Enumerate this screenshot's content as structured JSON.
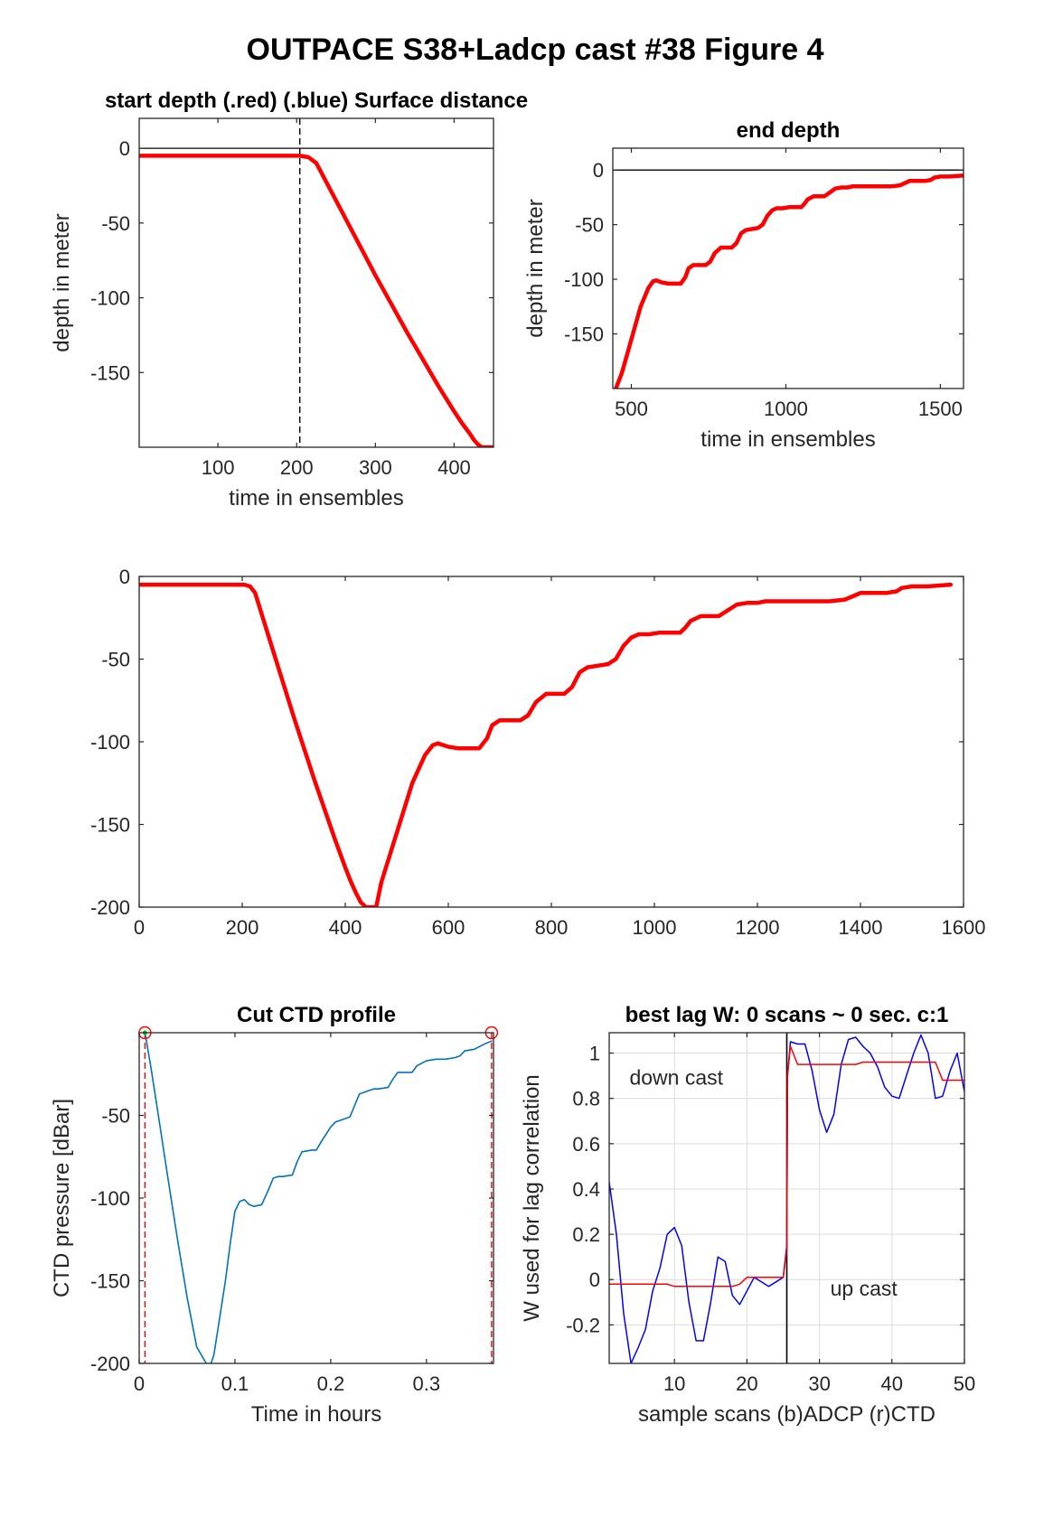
{
  "figure_title": "OUTPACE S38+Ladcp cast #38   Figure 4",
  "chart_data": [
    {
      "id": "start",
      "type": "line",
      "title": "start depth (.red) (.blue) Surface distance",
      "xlabel": "time in ensembles",
      "ylabel": "depth in meter",
      "xlim": [
        0,
        450
      ],
      "ylim": [
        -200,
        20
      ],
      "xticks": [
        100,
        200,
        300,
        400
      ],
      "yticks": [
        0,
        -50,
        -100,
        -150
      ],
      "hlines": [
        0
      ],
      "vlines_dashed": [
        204
      ],
      "series": [
        {
          "color": "#ff0000",
          "x": [
            0,
            50,
            100,
            150,
            200,
            204,
            215,
            225,
            240,
            260,
            280,
            300,
            320,
            340,
            360,
            380,
            400,
            410,
            420,
            425,
            430,
            435,
            440,
            445,
            450
          ],
          "y": [
            -5,
            -5,
            -5,
            -5,
            -5,
            -5,
            -6,
            -10,
            -25,
            -45,
            -65,
            -85,
            -104,
            -123,
            -141,
            -159,
            -176,
            -184,
            -191,
            -195,
            -198,
            -200,
            -200,
            -200,
            -200
          ]
        }
      ]
    },
    {
      "id": "end",
      "type": "line",
      "title": "end depth",
      "xlabel": "time in ensembles",
      "ylabel": "depth in meter",
      "xlim": [
        440,
        1575
      ],
      "ylim": [
        -200,
        20
      ],
      "xticks": [
        500,
        1000,
        1500
      ],
      "yticks": [
        0,
        -50,
        -100,
        -150
      ],
      "hlines": [
        0
      ],
      "series": [
        {
          "color": "#ff0000",
          "x": [
            450,
            470,
            500,
            530,
            555,
            570,
            580,
            600,
            620,
            640,
            660,
            675,
            685,
            700,
            720,
            740,
            755,
            770,
            790,
            810,
            825,
            840,
            855,
            870,
            890,
            910,
            925,
            940,
            955,
            970,
            990,
            1010,
            1030,
            1050,
            1060,
            1070,
            1090,
            1110,
            1125,
            1140,
            1160,
            1180,
            1200,
            1215,
            1230,
            1260,
            1300,
            1340,
            1370,
            1385,
            1400,
            1430,
            1450,
            1470,
            1480,
            1500,
            1530,
            1575
          ],
          "y": [
            -200,
            -185,
            -155,
            -125,
            -108,
            -102,
            -101,
            -103,
            -104,
            -104,
            -104,
            -98,
            -90,
            -87,
            -87,
            -87,
            -84,
            -76,
            -71,
            -71,
            -71,
            -67,
            -58,
            -55,
            -54,
            -53,
            -50,
            -42,
            -37,
            -35,
            -35,
            -34,
            -34,
            -34,
            -31,
            -27,
            -24,
            -24,
            -24,
            -21,
            -17,
            -16,
            -16,
            -15,
            -15,
            -15,
            -15,
            -15,
            -14,
            -12,
            -10,
            -10,
            -10,
            -9,
            -7,
            -6,
            -6,
            -5
          ]
        }
      ]
    },
    {
      "id": "full",
      "type": "line",
      "title": "",
      "xlabel": "",
      "ylabel": "",
      "xlim": [
        0,
        1600
      ],
      "ylim": [
        -200,
        0
      ],
      "xticks": [
        0,
        200,
        400,
        600,
        800,
        1000,
        1200,
        1400,
        1600
      ],
      "yticks": [
        0,
        -50,
        -100,
        -150,
        -200
      ],
      "series": [
        {
          "color": "#ff0000",
          "x": [
            0,
            50,
            100,
            150,
            200,
            204,
            215,
            225,
            240,
            260,
            280,
            300,
            320,
            340,
            360,
            380,
            400,
            410,
            420,
            430,
            440,
            450,
            460,
            470,
            500,
            530,
            555,
            570,
            580,
            600,
            620,
            640,
            660,
            675,
            685,
            700,
            720,
            740,
            755,
            770,
            790,
            810,
            825,
            840,
            855,
            870,
            890,
            910,
            925,
            940,
            955,
            970,
            990,
            1010,
            1030,
            1050,
            1060,
            1070,
            1090,
            1110,
            1125,
            1140,
            1160,
            1180,
            1200,
            1215,
            1230,
            1260,
            1300,
            1340,
            1370,
            1385,
            1400,
            1430,
            1450,
            1470,
            1480,
            1500,
            1530,
            1575
          ],
          "y": [
            -5,
            -5,
            -5,
            -5,
            -5,
            -5,
            -6,
            -10,
            -25,
            -45,
            -65,
            -85,
            -104,
            -123,
            -141,
            -159,
            -176,
            -184,
            -191,
            -197,
            -200,
            -200,
            -200,
            -185,
            -155,
            -125,
            -108,
            -102,
            -101,
            -103,
            -104,
            -104,
            -104,
            -98,
            -90,
            -87,
            -87,
            -87,
            -84,
            -76,
            -71,
            -71,
            -71,
            -67,
            -58,
            -55,
            -54,
            -53,
            -50,
            -42,
            -37,
            -35,
            -35,
            -34,
            -34,
            -34,
            -31,
            -27,
            -24,
            -24,
            -24,
            -21,
            -17,
            -16,
            -16,
            -15,
            -15,
            -15,
            -15,
            -15,
            -14,
            -12,
            -10,
            -10,
            -10,
            -9,
            -7,
            -6,
            -6,
            -5
          ]
        }
      ]
    },
    {
      "id": "cut",
      "type": "line",
      "title": "Cut CTD profile",
      "xlabel": "Time in hours",
      "ylabel": "CTD pressure [dBar]",
      "xlim": [
        0,
        0.37
      ],
      "ylim": [
        -200,
        0
      ],
      "xticks": [
        0,
        0.1,
        0.2,
        0.3
      ],
      "yticks": [
        -50,
        -100,
        -150,
        -200
      ],
      "markers": [
        [
          0.006,
          0
        ],
        [
          0.368,
          0
        ]
      ],
      "vlines_dashed": [
        0.006,
        0.368
      ],
      "series": [
        {
          "color": "#0072bd",
          "x": [
            0.006,
            0.012,
            0.02,
            0.03,
            0.04,
            0.05,
            0.06,
            0.07,
            0.075,
            0.078,
            0.082,
            0.09,
            0.095,
            0.1,
            0.105,
            0.11,
            0.115,
            0.12,
            0.128,
            0.135,
            0.14,
            0.145,
            0.15,
            0.16,
            0.165,
            0.17,
            0.18,
            0.185,
            0.19,
            0.2,
            0.205,
            0.21,
            0.22,
            0.225,
            0.23,
            0.24,
            0.245,
            0.25,
            0.26,
            0.265,
            0.27,
            0.28,
            0.285,
            0.29,
            0.3,
            0.31,
            0.32,
            0.33,
            0.335,
            0.34,
            0.35,
            0.36,
            0.368
          ],
          "y": [
            0,
            -20,
            -50,
            -88,
            -125,
            -160,
            -190,
            -200,
            -200,
            -195,
            -180,
            -150,
            -128,
            -108,
            -102,
            -101,
            -104,
            -105,
            -104,
            -95,
            -88,
            -87,
            -87,
            -86,
            -78,
            -72,
            -71,
            -71,
            -66,
            -57,
            -54,
            -53,
            -51,
            -44,
            -37,
            -35,
            -34,
            -34,
            -33,
            -28,
            -24,
            -24,
            -24,
            -20,
            -17,
            -16,
            -16,
            -15,
            -14,
            -11,
            -10,
            -7,
            -5
          ]
        }
      ]
    },
    {
      "id": "lag",
      "type": "line",
      "title": "best lag W: 0 scans ~ 0 sec.  c:1",
      "xlabel": "sample scans (b)ADCP (r)CTD",
      "ylabel": "W used for lag correlation",
      "xlim": [
        1,
        50
      ],
      "ylim": [
        -0.37,
        1.09
      ],
      "xticks": [
        10,
        20,
        30,
        40,
        50
      ],
      "yticks": [
        1,
        0.8,
        0.6,
        0.4,
        0.2,
        0,
        -0.2
      ],
      "grid": true,
      "vlines_solid": [
        25.5
      ],
      "annotations": [
        {
          "text": "down cast",
          "x": 3.8,
          "y": 0.86
        },
        {
          "text": "up cast",
          "x": 31.5,
          "y": -0.07
        }
      ],
      "series": [
        {
          "name": "(b)ADCP",
          "color": "#0000ff",
          "x": [
            1,
            2,
            3,
            4,
            5,
            6,
            7,
            8,
            9,
            10,
            11,
            12,
            13,
            14,
            15,
            16,
            17,
            18,
            19,
            20,
            21,
            22,
            23,
            24,
            25,
            25.5,
            25.6,
            26,
            27,
            28,
            29,
            30,
            31,
            32,
            33,
            34,
            35,
            36,
            37,
            38,
            39,
            40,
            41,
            42,
            43,
            44,
            45,
            46,
            47,
            48,
            49,
            50
          ],
          "y": [
            0.43,
            0.2,
            -0.15,
            -0.37,
            -0.3,
            -0.22,
            -0.05,
            0.05,
            0.2,
            0.23,
            0.15,
            -0.1,
            -0.27,
            -0.27,
            -0.1,
            0.1,
            0.08,
            -0.07,
            -0.11,
            -0.05,
            0.01,
            -0.01,
            -0.03,
            -0.01,
            0.01,
            0.15,
            0.9,
            1.05,
            1.04,
            1.04,
            0.92,
            0.75,
            0.65,
            0.73,
            0.95,
            1.06,
            1.07,
            1.03,
            1.0,
            0.94,
            0.85,
            0.81,
            0.8,
            0.9,
            1.0,
            1.08,
            1.0,
            0.8,
            0.81,
            0.92,
            1.0,
            0.83
          ]
        },
        {
          "name": "(r)CTD",
          "color": "#ff0000",
          "x": [
            1,
            2,
            4,
            6,
            8,
            9,
            10,
            12,
            14,
            16,
            18,
            19,
            20,
            21,
            22,
            23,
            24,
            25,
            25.5,
            25.6,
            26,
            27,
            28,
            30,
            32,
            34,
            35,
            36,
            38,
            40,
            42,
            44,
            46,
            47,
            48,
            49,
            50
          ],
          "y": [
            -0.02,
            -0.02,
            -0.02,
            -0.02,
            -0.02,
            -0.02,
            -0.03,
            -0.03,
            -0.03,
            -0.03,
            -0.03,
            -0.02,
            0.01,
            0.01,
            0.01,
            0.01,
            0.01,
            0.01,
            0.13,
            0.9,
            1.03,
            0.95,
            0.95,
            0.95,
            0.95,
            0.95,
            0.95,
            0.96,
            0.96,
            0.96,
            0.96,
            0.96,
            0.96,
            0.88,
            0.88,
            0.88,
            0.88
          ]
        }
      ]
    }
  ]
}
